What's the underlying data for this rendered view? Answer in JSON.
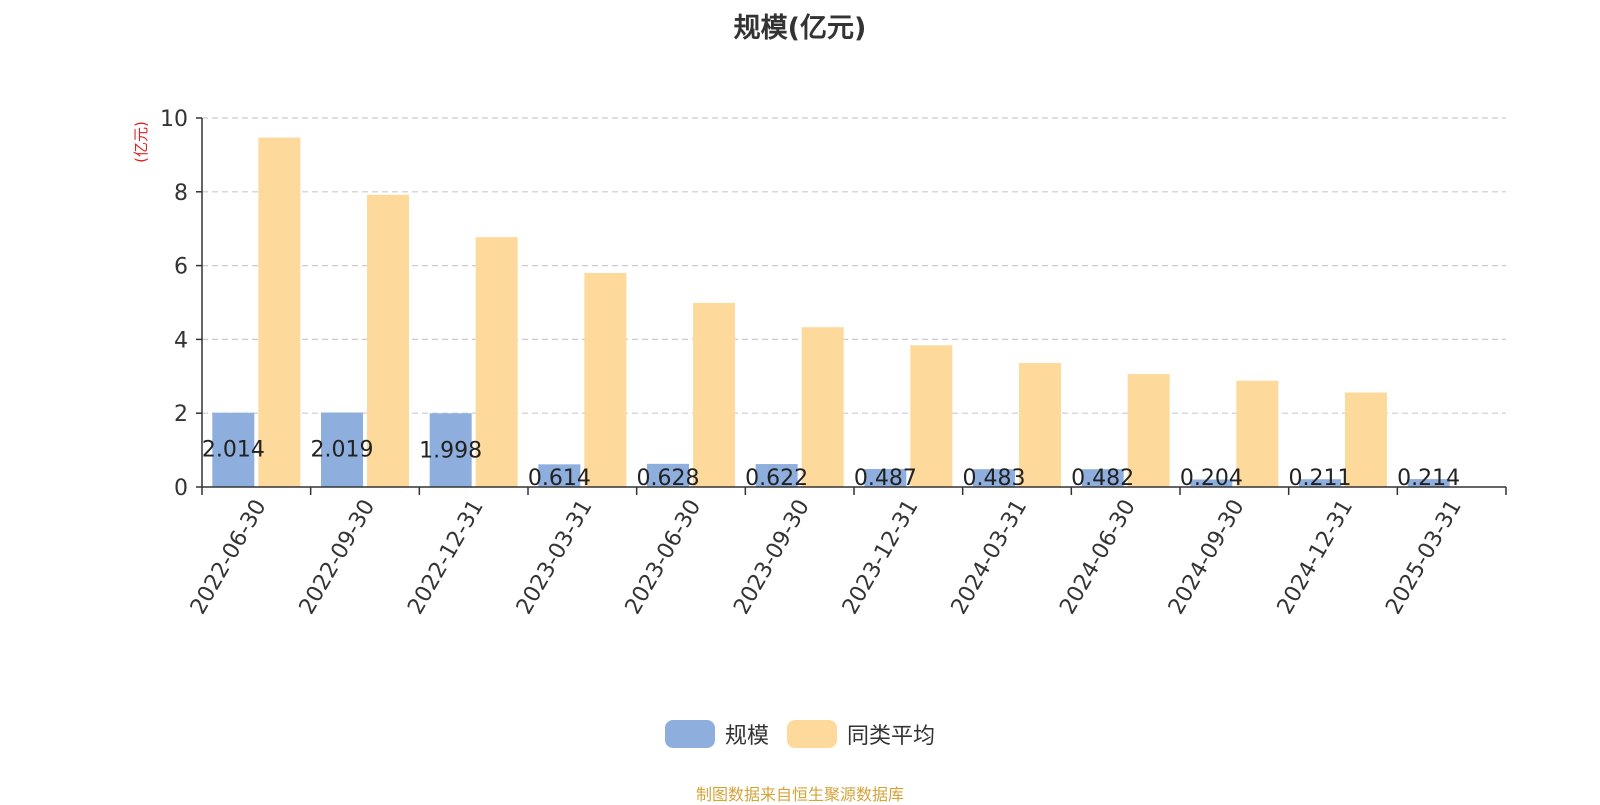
{
  "chart_data": {
    "type": "bar",
    "title": "规模(亿元)",
    "ylabel": "(亿元)",
    "xlabel": "",
    "ylim": [
      0,
      10
    ],
    "yticks": [
      0,
      2,
      4,
      6,
      8,
      10
    ],
    "grid": true,
    "legend_position": "bottom",
    "categories": [
      "2022-06-30",
      "2022-09-30",
      "2022-12-31",
      "2023-03-31",
      "2023-06-30",
      "2023-09-30",
      "2023-12-31",
      "2024-03-31",
      "2024-06-30",
      "2024-09-30",
      "2024-12-31",
      "2025-03-31"
    ],
    "series": [
      {
        "name": "规模",
        "color": "#8eaedd",
        "values": [
          2.014,
          2.019,
          1.998,
          0.614,
          0.628,
          0.622,
          0.487,
          0.483,
          0.482,
          0.204,
          0.211,
          0.214
        ],
        "labels": [
          "2.014",
          "2.019",
          "1.998",
          "0.614",
          "0.628",
          "0.622",
          "0.487",
          "0.483",
          "0.482",
          "0.204",
          "0.211",
          "0.214"
        ]
      },
      {
        "name": "同类平均",
        "color": "#fdd99b",
        "values": [
          9.47,
          7.92,
          6.77,
          5.8,
          4.99,
          4.33,
          3.84,
          3.36,
          3.06,
          2.88,
          2.56,
          null
        ]
      }
    ]
  },
  "source": {
    "text": "制图数据来自恒生聚源数据库",
    "color": "#d4a43a"
  },
  "ylabel_color": "#e02020"
}
